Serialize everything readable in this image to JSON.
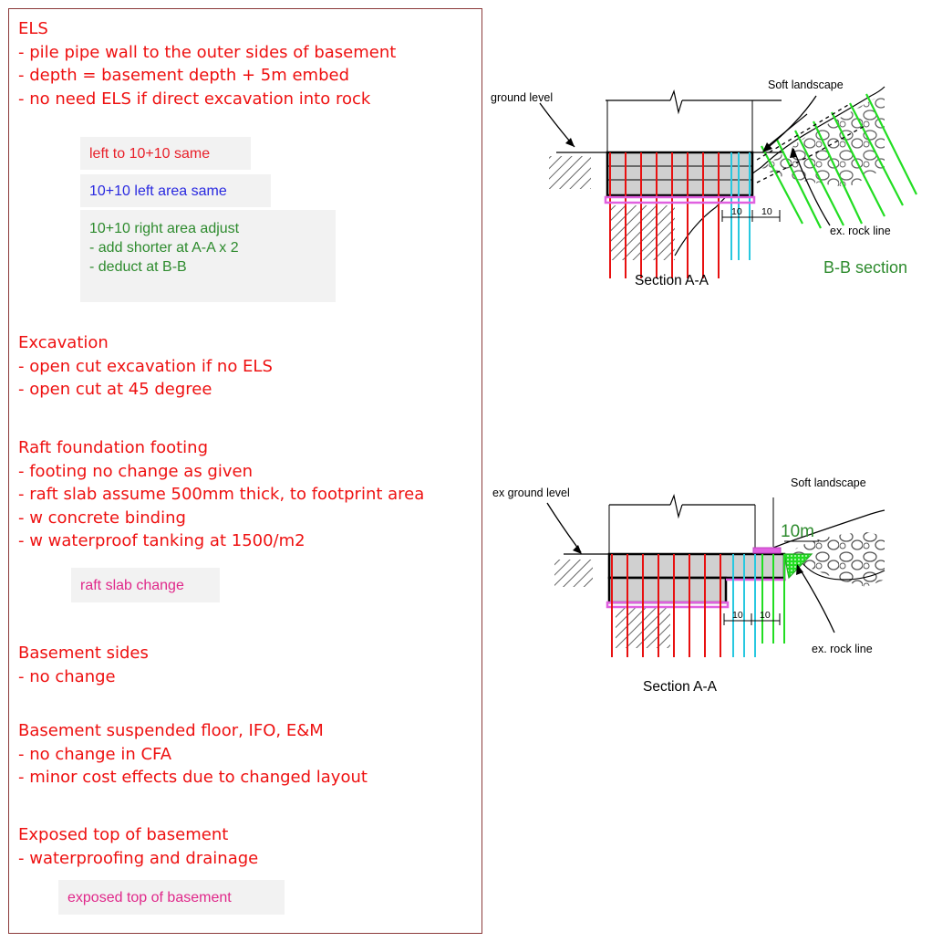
{
  "notes": {
    "els": {
      "title": "ELS",
      "lines": [
        "- pile pipe wall to the outer sides of basement",
        "- depth = basement depth + 5m embed",
        "- no need ELS if direct excavation into rock"
      ]
    },
    "excavation": {
      "title": "Excavation",
      "lines": [
        "- open cut excavation if no ELS",
        "- open cut at 45 degree"
      ]
    },
    "raft": {
      "title": "Raft foundation footing",
      "lines": [
        "- footing no change as given",
        "- raft slab assume 500mm thick, to footprint area",
        "- w concrete binding",
        "- w waterproof tanking at 1500/m2"
      ]
    },
    "sides": {
      "title": "Basement sides",
      "lines": [
        "- no change"
      ]
    },
    "suspended": {
      "title": "Basement suspended floor, IFO, E&M",
      "lines": [
        "- no change in CFA",
        "- minor cost effects due to changed layout"
      ]
    },
    "exposed": {
      "title": "Exposed top of basement",
      "lines": [
        "- waterproofing and drainage"
      ]
    }
  },
  "tags": {
    "left_same": "left to 10+10 same",
    "left_area_same": "10+10 left area same",
    "right_adjust": {
      "title": "10+10 right area adjust",
      "lines": [
        "- add shorter at A-A x 2",
        "- deduct at B-B"
      ]
    },
    "raft_change": "raft slab change",
    "exposed_top": "exposed top of basement"
  },
  "diagram_top": {
    "ground_level": "ground level",
    "soft_landscape": "Soft landscape",
    "rock_line": "ex. rock line",
    "dim_left": "10",
    "dim_right": "10",
    "section": "Section A-A",
    "bb_section": "B-B section"
  },
  "diagram_bottom": {
    "ground_level": "ex ground level",
    "soft_landscape": "Soft landscape",
    "dim_10m": "10m",
    "rock_line": "ex. rock line",
    "dim_left": "10",
    "dim_right": "10",
    "section": "Section A-A"
  },
  "colors": {
    "note_red": "#ee1111",
    "tag_red": "#e8202a",
    "tag_blue": "#2a2ae0",
    "tag_green": "#2e8b2e",
    "tag_pink": "#e0288a",
    "pile_red": "#e81010",
    "pile_cyan": "#28c8e0",
    "pile_green": "#22dd22",
    "tanking_magenta": "#e060e0",
    "panel_border": "#8b3a3a"
  }
}
